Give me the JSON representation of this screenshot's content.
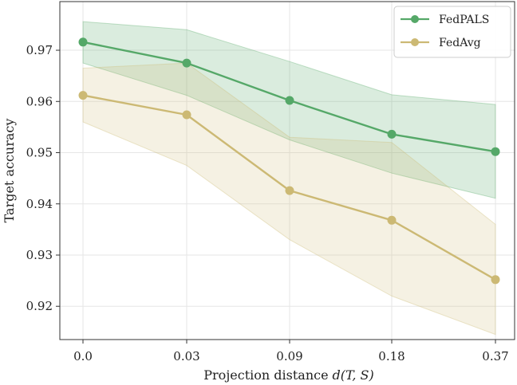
{
  "chart_data": {
    "type": "line",
    "title": "",
    "xlabel": "Projection distance",
    "xlabel_math": "d(T, S)",
    "ylabel": "Target accuracy",
    "categories": [
      "0.0",
      "0.03",
      "0.09",
      "0.18",
      "0.37"
    ],
    "ylim": [
      0.9135,
      0.9795
    ],
    "yticks": [
      0.92,
      0.93,
      0.94,
      0.95,
      0.96,
      0.97
    ],
    "ytick_labels": [
      "0.92",
      "0.93",
      "0.94",
      "0.95",
      "0.96",
      "0.97"
    ],
    "grid": true,
    "legend_position": "top-right",
    "series": [
      {
        "name": "FedPALS",
        "color": "#55a868",
        "values": [
          0.9716,
          0.9675,
          0.9602,
          0.9536,
          0.9502
        ],
        "lower": [
          0.9675,
          0.9612,
          0.9525,
          0.946,
          0.9411
        ],
        "upper": [
          0.9756,
          0.974,
          0.9678,
          0.9613,
          0.9594
        ]
      },
      {
        "name": "FedAvg",
        "color": "#ccb974",
        "values": [
          0.9612,
          0.9574,
          0.9426,
          0.9368,
          0.9252
        ],
        "lower": [
          0.956,
          0.9475,
          0.933,
          0.922,
          0.9145
        ],
        "upper": [
          0.9665,
          0.9675,
          0.953,
          0.952,
          0.936
        ]
      }
    ]
  }
}
